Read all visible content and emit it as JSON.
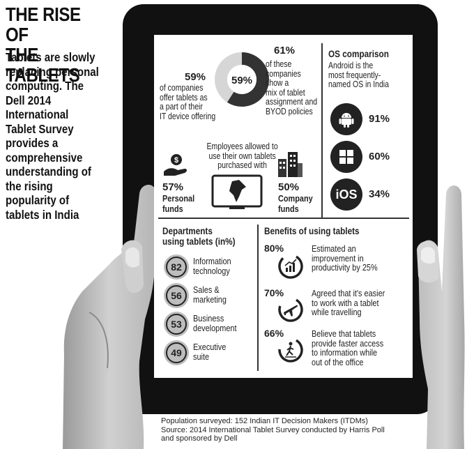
{
  "headline": [
    "THE RISE OF",
    "THE TABLETS"
  ],
  "intro": [
    "Tablets are slowly",
    "replacing personal",
    "computing. The",
    "Dell 2014",
    "International",
    "Tablet Survey",
    "provides a",
    "comprehensive",
    "understanding of",
    "the rising",
    "popularity of",
    "tablets in India"
  ],
  "donut": {
    "center_label": "59%",
    "value": 59,
    "left_pct": "59%",
    "left_text": [
      "of companies",
      "offer tablets as",
      "a part of their",
      "IT device offering"
    ],
    "right_pct": "61%",
    "right_text": [
      "of these",
      "companies",
      "show a",
      "mix of tablet",
      "assignment and",
      "BYOD policies"
    ]
  },
  "byod": {
    "title": [
      "Employees allowed to",
      "use their own tablets",
      "purchased with"
    ],
    "personal_pct": "57%",
    "personal_label": [
      "Personal",
      "funds"
    ],
    "company_pct": "50%",
    "company_label": [
      "Company",
      "funds"
    ],
    "personal_icon": "money-hand-icon",
    "company_icon": "buildings-icon",
    "center_icon": "india-map-tablet-icon"
  },
  "os": {
    "title": "OS comparison",
    "subtitle": [
      "Android is the",
      "most frequently-",
      "named OS in India"
    ],
    "items": [
      {
        "icon": "android-icon",
        "pct": "91%"
      },
      {
        "icon": "windows-icon",
        "pct": "60%"
      },
      {
        "icon": "ios-icon",
        "label": "iOS",
        "pct": "34%"
      }
    ]
  },
  "departments": {
    "title": [
      "Departments",
      "using tablets (in%)"
    ],
    "items": [
      {
        "value": "82",
        "label": [
          "Information",
          "technology"
        ]
      },
      {
        "value": "56",
        "label": [
          "Sales &",
          "marketing"
        ]
      },
      {
        "value": "53",
        "label": [
          "Business",
          "development"
        ]
      },
      {
        "value": "49",
        "label": [
          "Executive",
          "suite"
        ]
      }
    ]
  },
  "benefits": {
    "title": "Benefits of using tablets",
    "items": [
      {
        "pct": "80%",
        "icon": "productivity-chart-icon",
        "text": [
          "Estimated an",
          "improvement in",
          "productivity by 25%"
        ]
      },
      {
        "pct": "70%",
        "icon": "airplane-icon",
        "text": [
          "Agreed that it's easier",
          "to work with a tablet",
          "while travelling"
        ]
      },
      {
        "pct": "66%",
        "icon": "walking-person-icon",
        "text": [
          "Believe that tablets",
          "provide faster access",
          "to information while",
          "out of the office"
        ]
      }
    ]
  },
  "footer": [
    "Population surveyed: 152 Indian IT Decision Makers (ITDMs)",
    "Source: 2014 International Tablet Survey conducted by Harris Poll",
    "and sponsored by Dell"
  ]
}
